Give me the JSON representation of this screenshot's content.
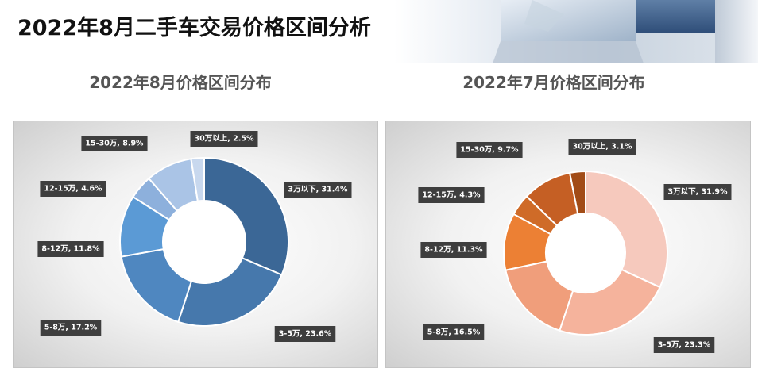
{
  "page": {
    "title": "2022年8月二手车交易价格区间分析"
  },
  "chart_data": [
    {
      "type": "pie",
      "title": "2022年8月价格区间分布",
      "categories": [
        "3万以下",
        "3-5万",
        "5-8万",
        "8-12万",
        "12-15万",
        "15-30万",
        "30万以上"
      ],
      "values": [
        31.4,
        23.6,
        17.2,
        11.8,
        4.6,
        8.9,
        2.5
      ],
      "labels": [
        "3万以下, 31.4%",
        "3-5万, 23.6%",
        "5-8万, 17.2%",
        "8-12万, 11.8%",
        "12-15万, 4.6%",
        "15-30万, 8.9%",
        "30万以上, 2.5%"
      ],
      "unit": "%",
      "style": "donut",
      "colors": [
        "#3b6796",
        "#4678ac",
        "#4f87c0",
        "#5b9ad5",
        "#8db0dc",
        "#aac4e6",
        "#c8d8ee"
      ]
    },
    {
      "type": "pie",
      "title": "2022年7月价格区间分布",
      "categories": [
        "3万以下",
        "3-5万",
        "5-8万",
        "8-12万",
        "12-15万",
        "15-30万",
        "30万以上"
      ],
      "values": [
        31.9,
        23.3,
        16.5,
        11.3,
        4.3,
        9.7,
        3.1
      ],
      "labels": [
        "3万以下, 31.9%",
        "3-5万, 23.3%",
        "5-8万, 16.5%",
        "8-12万, 11.3%",
        "12-15万, 4.3%",
        "15-30万, 9.7%",
        "30万以上, 3.1%"
      ],
      "unit": "%",
      "style": "donut",
      "colors": [
        "#f6c9bd",
        "#f5b39c",
        "#f09e7b",
        "#ec8034",
        "#cf6b28",
        "#c55f24",
        "#a24c17"
      ]
    }
  ]
}
